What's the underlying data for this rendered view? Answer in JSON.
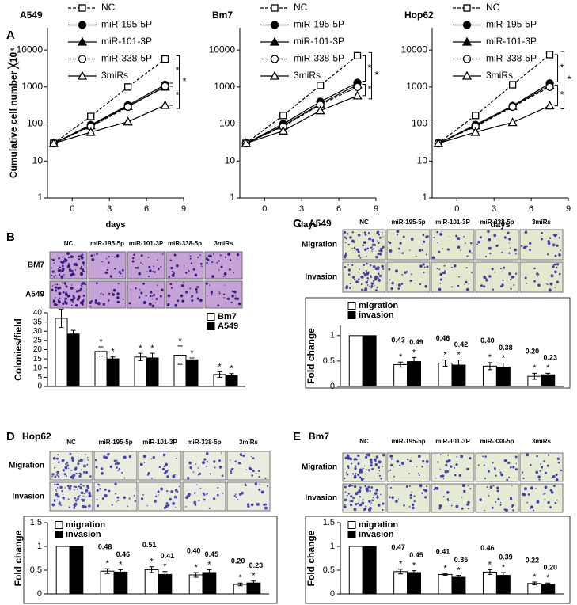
{
  "chart_data": [
    {
      "type": "line",
      "panel": "A",
      "title": "A549",
      "ylabel": "Cumulative cell number ╳10⁴",
      "xlabel": "days",
      "x": [
        -1.5,
        1.5,
        4.5,
        7.5
      ],
      "xlim": [
        -2,
        9
      ],
      "xticks": [
        0,
        3,
        6,
        9
      ],
      "ylim": [
        1,
        40000
      ],
      "yticks": [
        1,
        10,
        100,
        1000,
        10000
      ],
      "log_y": true,
      "series": [
        {
          "name": "NC",
          "color": "#000000",
          "marker": "square-open",
          "dashed": true,
          "values": [
            30,
            160,
            1000,
            5700
          ]
        },
        {
          "name": "miR-195-5P",
          "color": "#000000",
          "marker": "circle-filled",
          "dashed": false,
          "values": [
            30,
            95,
            320,
            1150
          ]
        },
        {
          "name": "miR-101-3P",
          "color": "#000000",
          "marker": "triangle-filled",
          "dashed": false,
          "values": [
            30,
            90,
            300,
            1000
          ]
        },
        {
          "name": "miR-338-5P",
          "color": "#000000",
          "marker": "circle-open",
          "dashed": true,
          "values": [
            30,
            85,
            290,
            1050
          ]
        },
        {
          "name": "3miRs",
          "color": "#000000",
          "marker": "triangle-open",
          "dashed": false,
          "values": [
            30,
            60,
            115,
            320
          ]
        }
      ],
      "annotations": [
        "*",
        "*",
        "*"
      ]
    },
    {
      "type": "line",
      "title": "Bm7",
      "xlabel": "days",
      "x": [
        -1.5,
        1.5,
        4.5,
        7.5
      ],
      "xlim": [
        -2,
        9
      ],
      "xticks": [
        0,
        3,
        6,
        9
      ],
      "ylim": [
        1,
        40000
      ],
      "yticks": [
        1,
        10,
        100,
        1000,
        10000
      ],
      "log_y": true,
      "series": [
        {
          "name": "NC",
          "color": "#000000",
          "marker": "square-open",
          "dashed": true,
          "values": [
            30,
            170,
            1100,
            7000
          ]
        },
        {
          "name": "miR-195-5P",
          "color": "#000000",
          "marker": "circle-filled",
          "dashed": false,
          "values": [
            30,
            100,
            400,
            1300
          ]
        },
        {
          "name": "miR-101-3P",
          "color": "#000000",
          "marker": "triangle-filled",
          "dashed": false,
          "values": [
            30,
            90,
            350,
            1150
          ]
        },
        {
          "name": "miR-338-5P",
          "color": "#000000",
          "marker": "circle-open",
          "dashed": true,
          "values": [
            30,
            85,
            330,
            1000
          ]
        },
        {
          "name": "3miRs",
          "color": "#000000",
          "marker": "triangle-open",
          "dashed": false,
          "values": [
            30,
            65,
            230,
            580
          ]
        }
      ],
      "annotations": [
        "*",
        "*",
        "*"
      ]
    },
    {
      "type": "line",
      "title": "Hop62",
      "xlabel": "days",
      "x": [
        -1.5,
        1.5,
        4.5,
        7.5
      ],
      "xlim": [
        -2,
        9
      ],
      "xticks": [
        0,
        3,
        6,
        9
      ],
      "ylim": [
        1,
        40000
      ],
      "yticks": [
        1,
        10,
        100,
        1000,
        10000
      ],
      "log_y": true,
      "series": [
        {
          "name": "NC",
          "color": "#000000",
          "marker": "square-open",
          "dashed": true,
          "values": [
            30,
            170,
            1150,
            7500
          ]
        },
        {
          "name": "miR-195-5P",
          "color": "#000000",
          "marker": "circle-filled",
          "dashed": false,
          "values": [
            30,
            95,
            310,
            1250
          ]
        },
        {
          "name": "miR-101-3P",
          "color": "#000000",
          "marker": "triangle-filled",
          "dashed": false,
          "values": [
            30,
            90,
            300,
            1100
          ]
        },
        {
          "name": "miR-338-5P",
          "color": "#000000",
          "marker": "circle-open",
          "dashed": true,
          "values": [
            30,
            85,
            290,
            1000
          ]
        },
        {
          "name": "3miRs",
          "color": "#000000",
          "marker": "triangle-open",
          "dashed": false,
          "values": [
            30,
            60,
            110,
            310
          ]
        }
      ],
      "annotations": [
        "*",
        "*",
        "*"
      ]
    },
    {
      "type": "bar",
      "panel": "B",
      "image_rows": [
        "BM7",
        "A549"
      ],
      "categories": [
        "NC",
        "miR-195-5p",
        "miR-101-3P",
        "miR-338-5p",
        "3miRs"
      ],
      "ylabel": "Colonies/field",
      "ylim": [
        0,
        40
      ],
      "yticks": [
        0,
        5,
        10,
        15,
        20,
        25,
        30,
        35,
        40
      ],
      "series": [
        {
          "name": "Bm7",
          "color": "#ffffff",
          "values": [
            37,
            19,
            16,
            17,
            6.5
          ],
          "errors": [
            5,
            2.5,
            2,
            5,
            1.5
          ]
        },
        {
          "name": "A549",
          "color": "#000000",
          "values": [
            28.5,
            15,
            15.5,
            14.5,
            6
          ],
          "errors": [
            2,
            1,
            2.5,
            1,
            1
          ]
        }
      ],
      "annotation": "*"
    },
    {
      "type": "bar",
      "panel": "C",
      "title": "A549",
      "image_rows": [
        "Migration",
        "Invasion"
      ],
      "categories": [
        "NC",
        "miR-195-5p",
        "miR-101-3P",
        "miR-338-5p",
        "3miRs"
      ],
      "ylabel": "Fold change",
      "ylim": [
        0,
        1.2
      ],
      "yticks": [
        0,
        0.5,
        1
      ],
      "series": [
        {
          "name": "migration",
          "color": "#ffffff",
          "values": [
            1,
            0.43,
            0.46,
            0.4,
            0.2
          ],
          "value_labels": [
            null,
            "0.43",
            "0.46",
            "0.40",
            "0.20"
          ],
          "errors": [
            0,
            0.05,
            0.06,
            0.07,
            0.06
          ]
        },
        {
          "name": "invasion",
          "color": "#000000",
          "values": [
            1,
            0.49,
            0.42,
            0.38,
            0.23
          ],
          "value_labels": [
            null,
            "0.49",
            "0.42",
            "0.38",
            "0.23"
          ],
          "errors": [
            0,
            0.08,
            0.1,
            0.08,
            0.03
          ]
        }
      ],
      "annotation": "*"
    },
    {
      "type": "bar",
      "panel": "D",
      "title": "Hop62",
      "image_rows": [
        "Migration",
        "Invasion"
      ],
      "categories": [
        "NC",
        "miR-195-5p",
        "miR-101-3P",
        "miR-338-5p",
        "3miRs"
      ],
      "ylabel": "Fold change",
      "ylim": [
        0,
        1.5
      ],
      "yticks": [
        0,
        0.5,
        1,
        1.5
      ],
      "series": [
        {
          "name": "migration",
          "color": "#ffffff",
          "values": [
            1,
            0.48,
            0.51,
            0.4,
            0.2
          ],
          "value_labels": [
            null,
            "0.48",
            "0.51",
            "0.40",
            "0.20"
          ],
          "errors": [
            0,
            0.05,
            0.06,
            0.05,
            0.03
          ]
        },
        {
          "name": "invasion",
          "color": "#000000",
          "values": [
            1,
            0.46,
            0.41,
            0.45,
            0.23
          ],
          "value_labels": [
            null,
            "0.46",
            "0.41",
            "0.45",
            "0.23"
          ],
          "errors": [
            0,
            0.05,
            0.06,
            0.06,
            0.04
          ]
        }
      ],
      "annotation": "*"
    },
    {
      "type": "bar",
      "panel": "E",
      "title": "Bm7",
      "image_rows": [
        "Migration",
        "Invasion"
      ],
      "categories": [
        "NC",
        "miR-195-5p",
        "miR-101-3P",
        "miR-338-5p",
        "3miRs"
      ],
      "ylabel": "Fold change",
      "ylim": [
        0,
        1.5
      ],
      "yticks": [
        0,
        0.5,
        1,
        1.5
      ],
      "series": [
        {
          "name": "migration",
          "color": "#ffffff",
          "values": [
            1,
            0.47,
            0.41,
            0.46,
            0.22
          ],
          "value_labels": [
            null,
            "0.47",
            "0.41",
            "0.46",
            "0.22"
          ],
          "errors": [
            0,
            0.05,
            0.02,
            0.05,
            0.03
          ]
        },
        {
          "name": "invasion",
          "color": "#000000",
          "values": [
            1,
            0.45,
            0.35,
            0.39,
            0.2
          ],
          "value_labels": [
            null,
            "0.45",
            "0.35",
            "0.39",
            "0.20"
          ],
          "errors": [
            0,
            0.04,
            0.04,
            0.06,
            0.03
          ]
        }
      ],
      "annotation": "*"
    }
  ]
}
